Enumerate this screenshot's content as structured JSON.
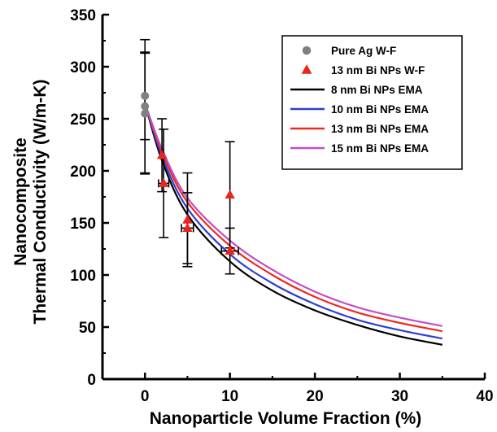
{
  "chart_data": {
    "type": "scatter",
    "xlabel": "Nanoparticle Volume Fraction (%)",
    "ylabel_lines": [
      "Nanocomposite",
      "Thermal Conductivity (W/m-K)"
    ],
    "xlim": [
      -5,
      40
    ],
    "ylim": [
      0,
      350
    ],
    "x_ticks": [
      0,
      10,
      20,
      30,
      40
    ],
    "y_ticks": [
      0,
      50,
      100,
      150,
      200,
      250,
      300,
      350
    ],
    "grid": false,
    "legend_position": "top-right",
    "series": [
      {
        "name": "Pure Ag W-F",
        "kind": "points",
        "marker": "circle",
        "color": "#808080",
        "points": [
          {
            "x": 0,
            "y": 272,
            "y_err": 42
          },
          {
            "x": 0,
            "y": 262,
            "y_err": 64
          },
          {
            "x": 0,
            "y": 255,
            "y_err": 58
          }
        ]
      },
      {
        "name": "13 nm Bi NPs W-F",
        "kind": "points",
        "marker": "triangle",
        "color": "#e8261f",
        "points": [
          {
            "x": 2,
            "y": 215,
            "y_err": 35
          },
          {
            "x": 2.2,
            "y": 188,
            "y_err": 52,
            "x_err": 0.6
          },
          {
            "x": 5,
            "y": 153,
            "y_err": 45
          },
          {
            "x": 5,
            "y": 145,
            "y_err": 34,
            "x_err": 0.7
          },
          {
            "x": 10,
            "y": 177,
            "y_err": 51
          },
          {
            "x": 10,
            "y": 123,
            "y_err": 22,
            "x_err": 1.0
          }
        ]
      },
      {
        "name": "8 nm Bi NPs EMA",
        "kind": "line",
        "color": "#000000",
        "x": [
          0,
          2,
          5,
          10,
          15,
          20,
          25,
          30,
          35
        ],
        "y": [
          265,
          210,
          158,
          113,
          85,
          66,
          52,
          41,
          33
        ]
      },
      {
        "name": "10 nm Bi NPs EMA",
        "kind": "line",
        "color": "#2b3fd6",
        "x": [
          0,
          2,
          5,
          10,
          15,
          20,
          25,
          30,
          35
        ],
        "y": [
          265,
          214,
          164,
          120,
          92,
          72,
          57,
          47,
          39
        ]
      },
      {
        "name": "13 nm Bi NPs EMA",
        "kind": "line",
        "color": "#ee2a1c",
        "x": [
          0,
          2,
          5,
          10,
          15,
          20,
          25,
          30,
          35
        ],
        "y": [
          265,
          218,
          170,
          128,
          100,
          79,
          64,
          54,
          46
        ]
      },
      {
        "name": "15 nm Bi NPs EMA",
        "kind": "line",
        "color": "#c24fc2",
        "x": [
          0,
          2,
          5,
          10,
          15,
          20,
          25,
          30,
          35
        ],
        "y": [
          265,
          221,
          174,
          133,
          105,
          84,
          69,
          59,
          51
        ]
      }
    ]
  }
}
